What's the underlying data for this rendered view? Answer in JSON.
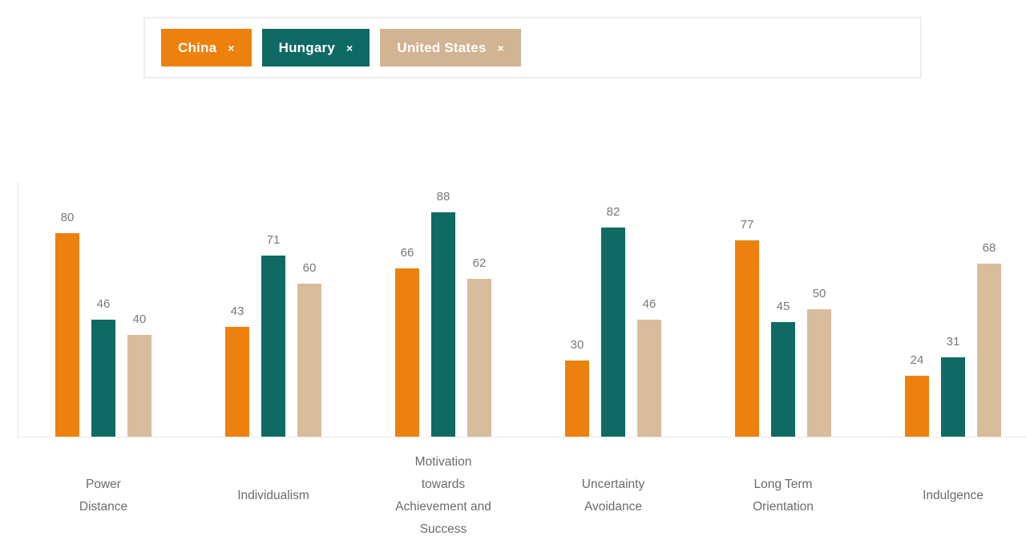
{
  "selector": {
    "chips": [
      {
        "label": "China",
        "remove_label": "×",
        "color": "#EC820D"
      },
      {
        "label": "Hungary",
        "remove_label": "×",
        "color": "#0F6A64"
      },
      {
        "label": "United States",
        "remove_label": "×",
        "color": "#D2B392"
      }
    ]
  },
  "chart_data": {
    "type": "bar",
    "categories": [
      "Power\nDistance",
      "Individualism",
      "Motivation\ntowards\nAchievement and\nSuccess",
      "Uncertainty\nAvoidance",
      "Long Term\nOrientation",
      "Indulgence"
    ],
    "series": [
      {
        "name": "China",
        "color": "#EC820D",
        "values": [
          80,
          43,
          66,
          30,
          77,
          24
        ]
      },
      {
        "name": "Hungary",
        "color": "#0F6A64",
        "values": [
          46,
          71,
          88,
          82,
          45,
          31
        ]
      },
      {
        "name": "United States",
        "color": "#D8BD9C",
        "values": [
          40,
          60,
          62,
          46,
          50,
          68
        ]
      }
    ],
    "ylim": [
      0,
      100
    ],
    "value_labels_shown": true,
    "grid": false,
    "legend_position": "chips-top",
    "axis_color": "#E8E8E8",
    "value_label_color": "#787878",
    "category_label_color": "#6B6B6B"
  }
}
